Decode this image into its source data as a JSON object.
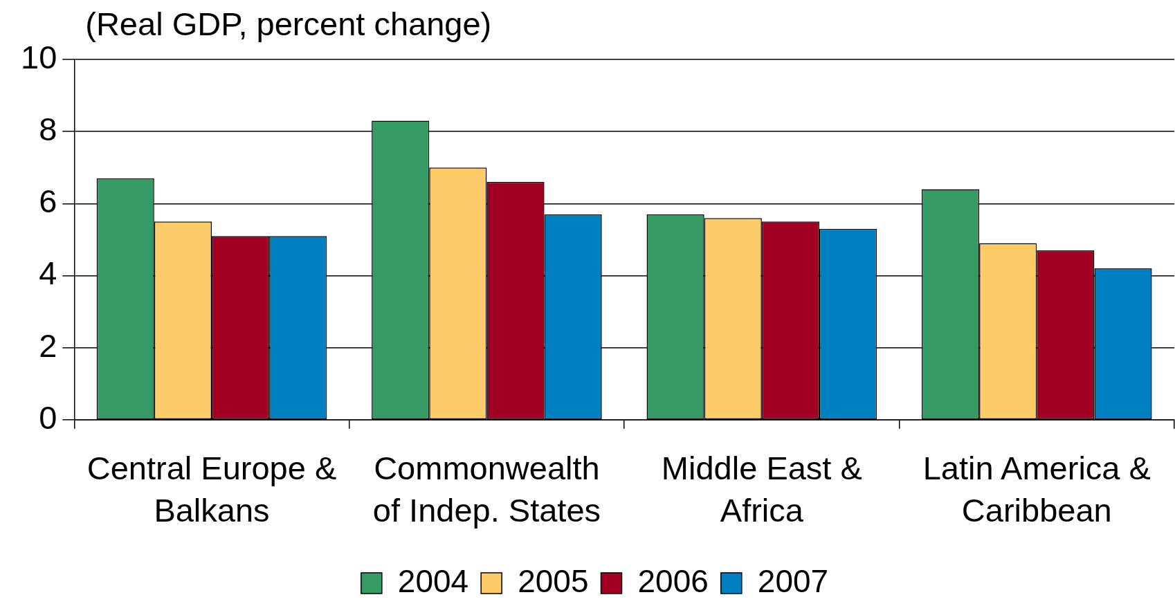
{
  "chart_data": {
    "type": "bar",
    "ylabel": "(Real GDP, percent change)",
    "categories": [
      "Central Europe & Balkans",
      "Commonwealth of Indep. States",
      "Middle East & Africa",
      "Latin America & Caribbean"
    ],
    "series": [
      {
        "name": "2004",
        "color": "#369a65",
        "values": [
          6.7,
          8.3,
          5.7,
          6.4
        ]
      },
      {
        "name": "2005",
        "color": "#fdcb67",
        "values": [
          5.5,
          7.0,
          5.6,
          4.9
        ]
      },
      {
        "name": "2006",
        "color": "#a20022",
        "values": [
          5.1,
          6.6,
          5.5,
          4.7
        ]
      },
      {
        "name": "2007",
        "color": "#0080c0",
        "values": [
          5.1,
          5.7,
          5.3,
          4.2
        ]
      }
    ],
    "ylim": [
      0,
      10
    ],
    "yticks": [
      0,
      2,
      4,
      6,
      8,
      10
    ],
    "grid": "y",
    "legend": "bottom"
  }
}
